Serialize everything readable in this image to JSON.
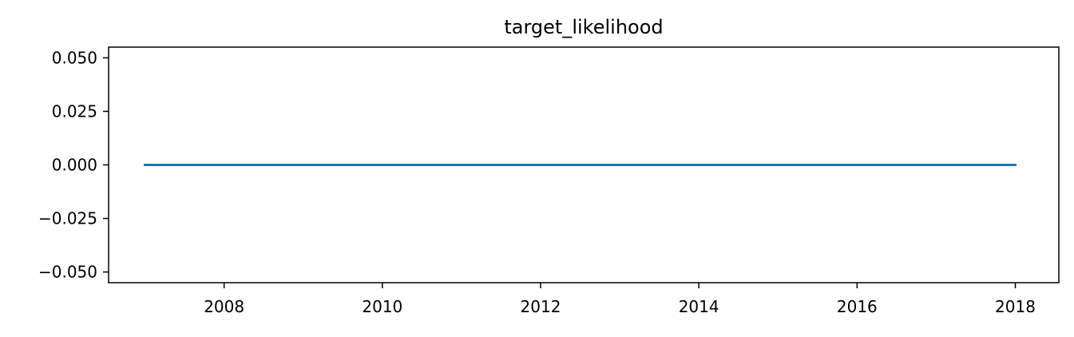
{
  "chart_data": {
    "type": "line",
    "title": "target_likelihood",
    "xlabel": "",
    "ylabel": "",
    "x_tick_labels": [
      "2008",
      "2010",
      "2012",
      "2014",
      "2016",
      "2018"
    ],
    "y_tick_labels": [
      "0.050",
      "0.025",
      "0.000",
      "−0.025",
      "−0.050"
    ],
    "x_ticks": [
      2008,
      2010,
      2012,
      2014,
      2016,
      2018
    ],
    "y_ticks": [
      0.05,
      0.025,
      0,
      -0.025,
      -0.05
    ],
    "xlim": [
      2006.54,
      2018.55
    ],
    "ylim": [
      -0.055,
      0.055
    ],
    "grid": false,
    "series": [
      {
        "color": "#1f77b4",
        "x": [
          2007.0,
          2018.0
        ],
        "y": [
          0.0,
          0.0
        ]
      }
    ]
  }
}
